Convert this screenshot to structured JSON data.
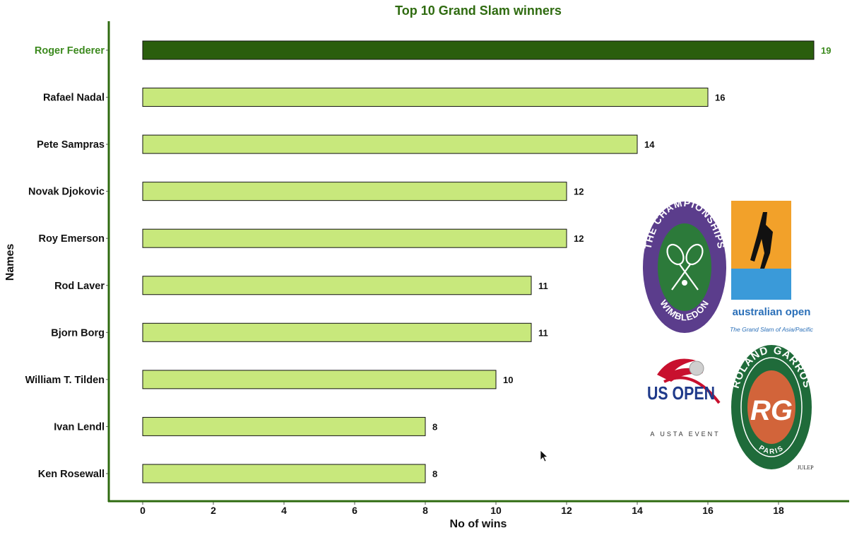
{
  "chart_data": {
    "type": "bar",
    "orientation": "horizontal",
    "title": "Top 10 Grand Slam winners",
    "xlabel": "No of wins",
    "ylabel": "Names",
    "xlim": [
      0,
      20
    ],
    "xticks": [
      0,
      2,
      4,
      6,
      8,
      10,
      12,
      14,
      16,
      18
    ],
    "grid": false,
    "categories": [
      "Roger Federer",
      "Rafael Nadal",
      "Pete Sampras",
      "Novak Djokovic",
      "Roy Emerson",
      "Rod Laver",
      "Bjorn Borg",
      "William T. Tilden",
      "Ivan Lendl",
      "Ken Rosewall"
    ],
    "values": [
      19,
      16,
      14,
      12,
      12,
      11,
      11,
      10,
      8,
      8
    ],
    "highlight_index": 0,
    "colors": {
      "highlight": "#2a5e0d",
      "bar": "#c8e87c",
      "axis": "#2f6b10",
      "highlight_text": "#3c8a1e",
      "text": "#111111"
    }
  },
  "logos": {
    "wimbledon_top": "THE CHAMPIONSHIPS",
    "wimbledon_bottom": "WIMBLEDON",
    "ao_name": "australian open",
    "ao_tagline": "The Grand Slam of Asia/Pacific",
    "us_open": "US OPEN",
    "us_tagline": "A USTA EVENT",
    "rg_top": "ROLAND GARROS",
    "rg_bottom": "PARIS",
    "rg_mono": "RG",
    "rg_sponsor": "JULEP"
  }
}
